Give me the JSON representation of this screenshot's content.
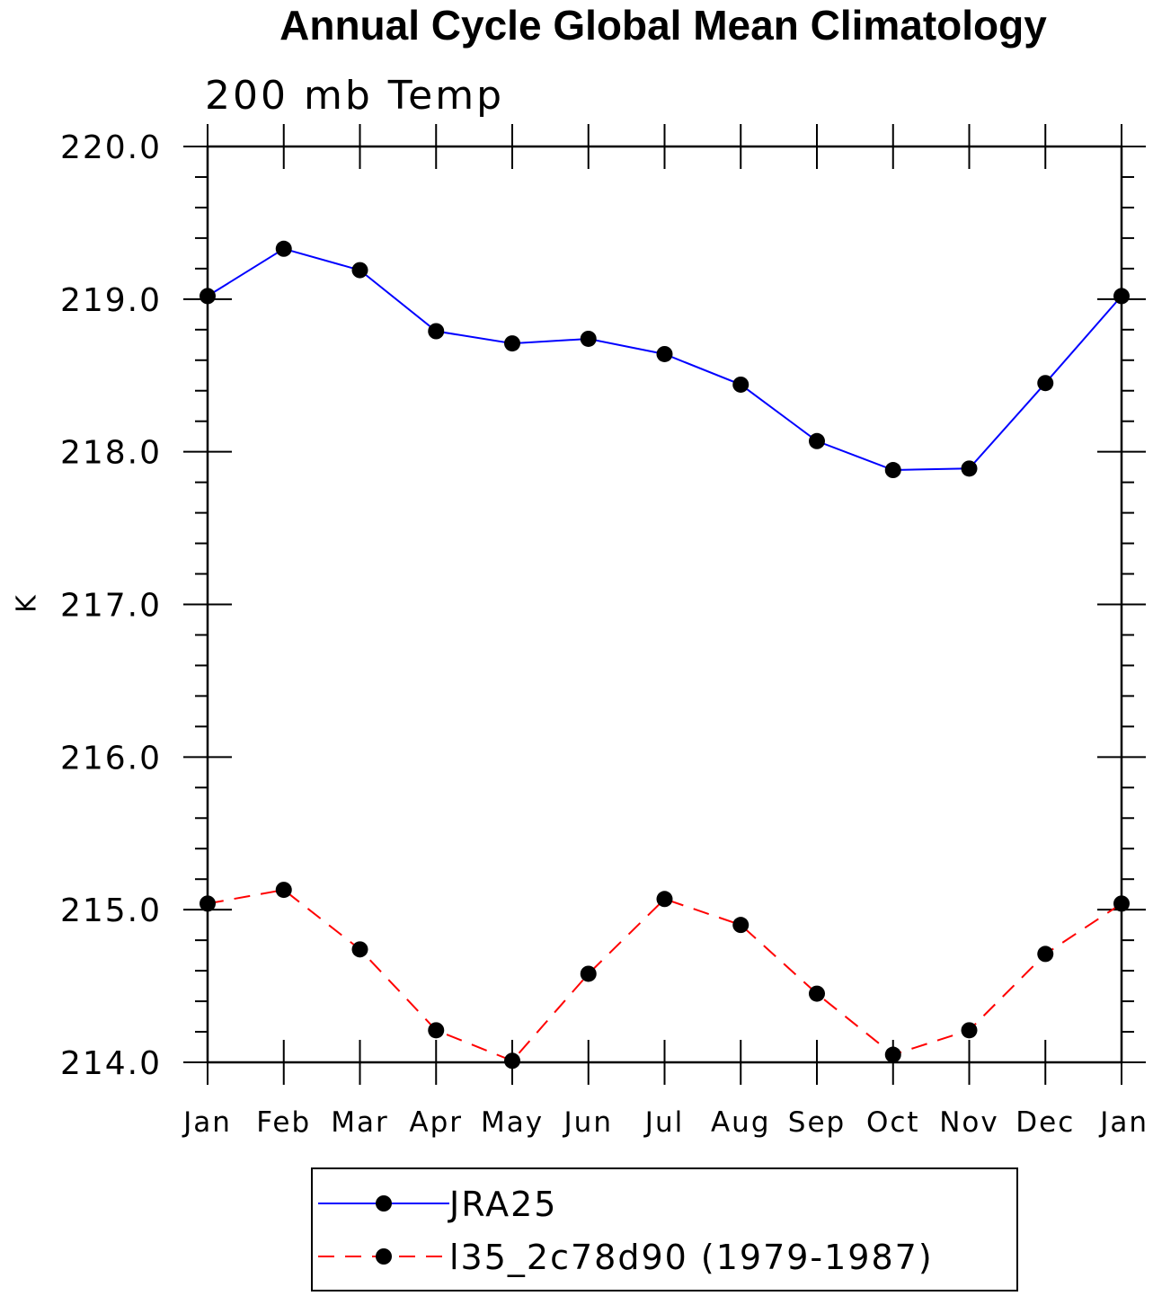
{
  "chart_data": {
    "type": "line",
    "title": "Annual Cycle Global Mean Climatology",
    "subtitle": "200 mb Temp",
    "ylabel": "K",
    "xlabel": "",
    "categories": [
      "Jan",
      "Feb",
      "Mar",
      "Apr",
      "May",
      "Jun",
      "Jul",
      "Aug",
      "Sep",
      "Oct",
      "Nov",
      "Dec",
      "Jan"
    ],
    "ylim": [
      214.0,
      220.0
    ],
    "yticks": [
      "214.0",
      "215.0",
      "216.0",
      "217.0",
      "218.0",
      "219.0",
      "220.0"
    ],
    "grid": false,
    "legend_position": "bottom",
    "series": [
      {
        "name": "JRA25",
        "color": "#0000ff",
        "line_style": "solid",
        "marker": "filled-circle",
        "values": [
          219.02,
          219.33,
          219.19,
          218.79,
          218.71,
          218.74,
          218.64,
          218.44,
          218.07,
          217.88,
          217.89,
          218.45,
          219.02
        ]
      },
      {
        "name": "l35_2c78d90 (1979-1987)",
        "color": "#ff0000",
        "line_style": "dashed",
        "marker": "filled-circle",
        "values": [
          215.04,
          215.13,
          214.74,
          214.21,
          214.01,
          214.58,
          215.07,
          214.9,
          214.45,
          214.05,
          214.21,
          214.71,
          215.04
        ]
      }
    ]
  }
}
